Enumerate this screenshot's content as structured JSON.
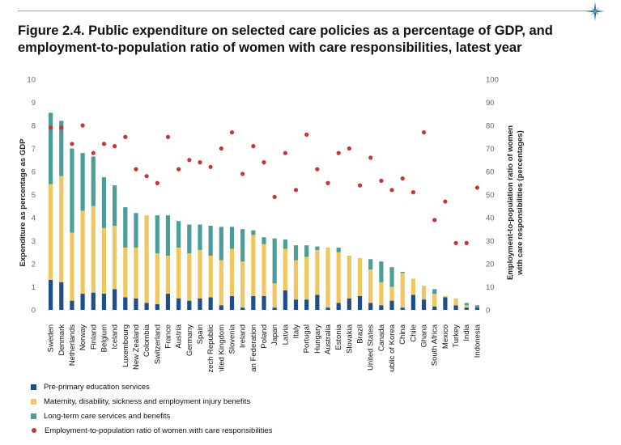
{
  "title": "Figure 2.4. Public expenditure on selected care policies as a percentage of GDP, and employment-to-population ratio of women with care responsibilities, latest year",
  "colors": {
    "pre_primary": "#1f4e8c",
    "maternity": "#f0c75e",
    "long_term": "#4a9d98",
    "employment": "#cc3333",
    "rule": "#7aa9c0"
  },
  "chart_data": {
    "type": "bar",
    "stacked": true,
    "ylabel": "Expenditure as percentage as GDP",
    "y2label": "Employment-to-population ratio of women with care responsibilities (percentages)",
    "ylim": [
      0,
      10
    ],
    "y2lim": [
      0,
      100
    ],
    "yticks": [
      0,
      1,
      2,
      3,
      4,
      5,
      6,
      7,
      8,
      9,
      10
    ],
    "y2ticks": [
      0,
      10,
      20,
      30,
      40,
      50,
      60,
      70,
      80,
      90,
      100
    ],
    "grid": false,
    "legend_position": "bottom-left",
    "categories": [
      "Sweden",
      "Denmark",
      "Netherlands",
      "Norway",
      "Finland",
      "Belgium",
      "Iceland",
      "Luxembourg",
      "New Zealand",
      "Colombia",
      "Switzerland",
      "France",
      "Austria",
      "Germany",
      "Spain",
      "Czech Republic",
      "United Kingdom",
      "Slovenia",
      "Ireland",
      "Russian Federation",
      "Poland",
      "Japan",
      "Latvia",
      "Italy",
      "Portugal",
      "Hungary",
      "Australia",
      "Estonia",
      "Slovakia",
      "Brazil",
      "United States",
      "Canada",
      "Republic of Korea",
      "China",
      "Chile",
      "Ghana",
      "South Africa",
      "Mexico",
      "Turkey",
      "India",
      "Indonesia"
    ],
    "series": [
      {
        "name": "Pre-primary education services",
        "axis": "left",
        "values": [
          1.3,
          1.2,
          0.4,
          0.7,
          0.75,
          0.7,
          0.9,
          0.55,
          0.5,
          0.3,
          0.25,
          0.7,
          0.5,
          0.4,
          0.5,
          0.55,
          0.2,
          0.6,
          0.1,
          0.6,
          0.6,
          0.1,
          0.85,
          0.45,
          0.45,
          0.65,
          0.1,
          0.3,
          0.5,
          0.6,
          0.3,
          0.2,
          0.4,
          0.1,
          0.65,
          0.45,
          0.15,
          0.55,
          0.2,
          0.1,
          0.1
        ]
      },
      {
        "name": "Maternity, disability, sickness and employment injury benefits",
        "axis": "left",
        "values": [
          4.15,
          4.6,
          2.95,
          3.6,
          3.75,
          2.85,
          2.75,
          2.15,
          2.2,
          3.8,
          2.2,
          1.65,
          2.2,
          2.05,
          2.1,
          1.8,
          1.95,
          2.05,
          2.0,
          2.65,
          2.25,
          1.05,
          1.8,
          1.7,
          1.85,
          1.95,
          2.6,
          2.2,
          1.85,
          1.65,
          1.45,
          1.0,
          0.6,
          1.5,
          0.7,
          0.6,
          0.55,
          0.05,
          0.3,
          0.1,
          0.0
        ]
      },
      {
        "name": "Long-term care services and benefits",
        "axis": "left",
        "values": [
          3.1,
          2.4,
          3.65,
          2.5,
          2.15,
          2.2,
          1.75,
          1.75,
          1.5,
          0.0,
          1.65,
          1.75,
          1.15,
          1.25,
          1.1,
          1.3,
          1.45,
          0.95,
          1.4,
          0.2,
          0.3,
          1.95,
          0.4,
          0.65,
          0.5,
          0.15,
          0.0,
          0.2,
          0.0,
          0.0,
          0.45,
          0.9,
          0.85,
          0.05,
          0.0,
          0.0,
          0.2,
          0.0,
          0.0,
          0.1,
          0.1
        ]
      },
      {
        "name": "Employment-to-population ratio of women with care responsibilities",
        "axis": "right",
        "type": "scatter",
        "values": [
          79,
          79,
          72,
          80,
          68,
          72,
          71,
          75,
          61,
          58,
          55,
          75,
          61,
          65,
          64,
          62,
          70,
          77,
          59,
          71,
          64,
          49,
          68,
          52,
          76,
          61,
          55,
          68,
          70,
          54,
          66,
          56,
          52,
          57,
          51,
          77,
          39,
          47,
          29,
          29,
          53
        ]
      }
    ]
  },
  "legend": {
    "items": [
      "Pre-primary education services",
      "Maternity, disability, sickness and employment injury benefits",
      "Long-term care services and benefits",
      "Employment-to-population ratio of women with care responsibilities"
    ]
  }
}
